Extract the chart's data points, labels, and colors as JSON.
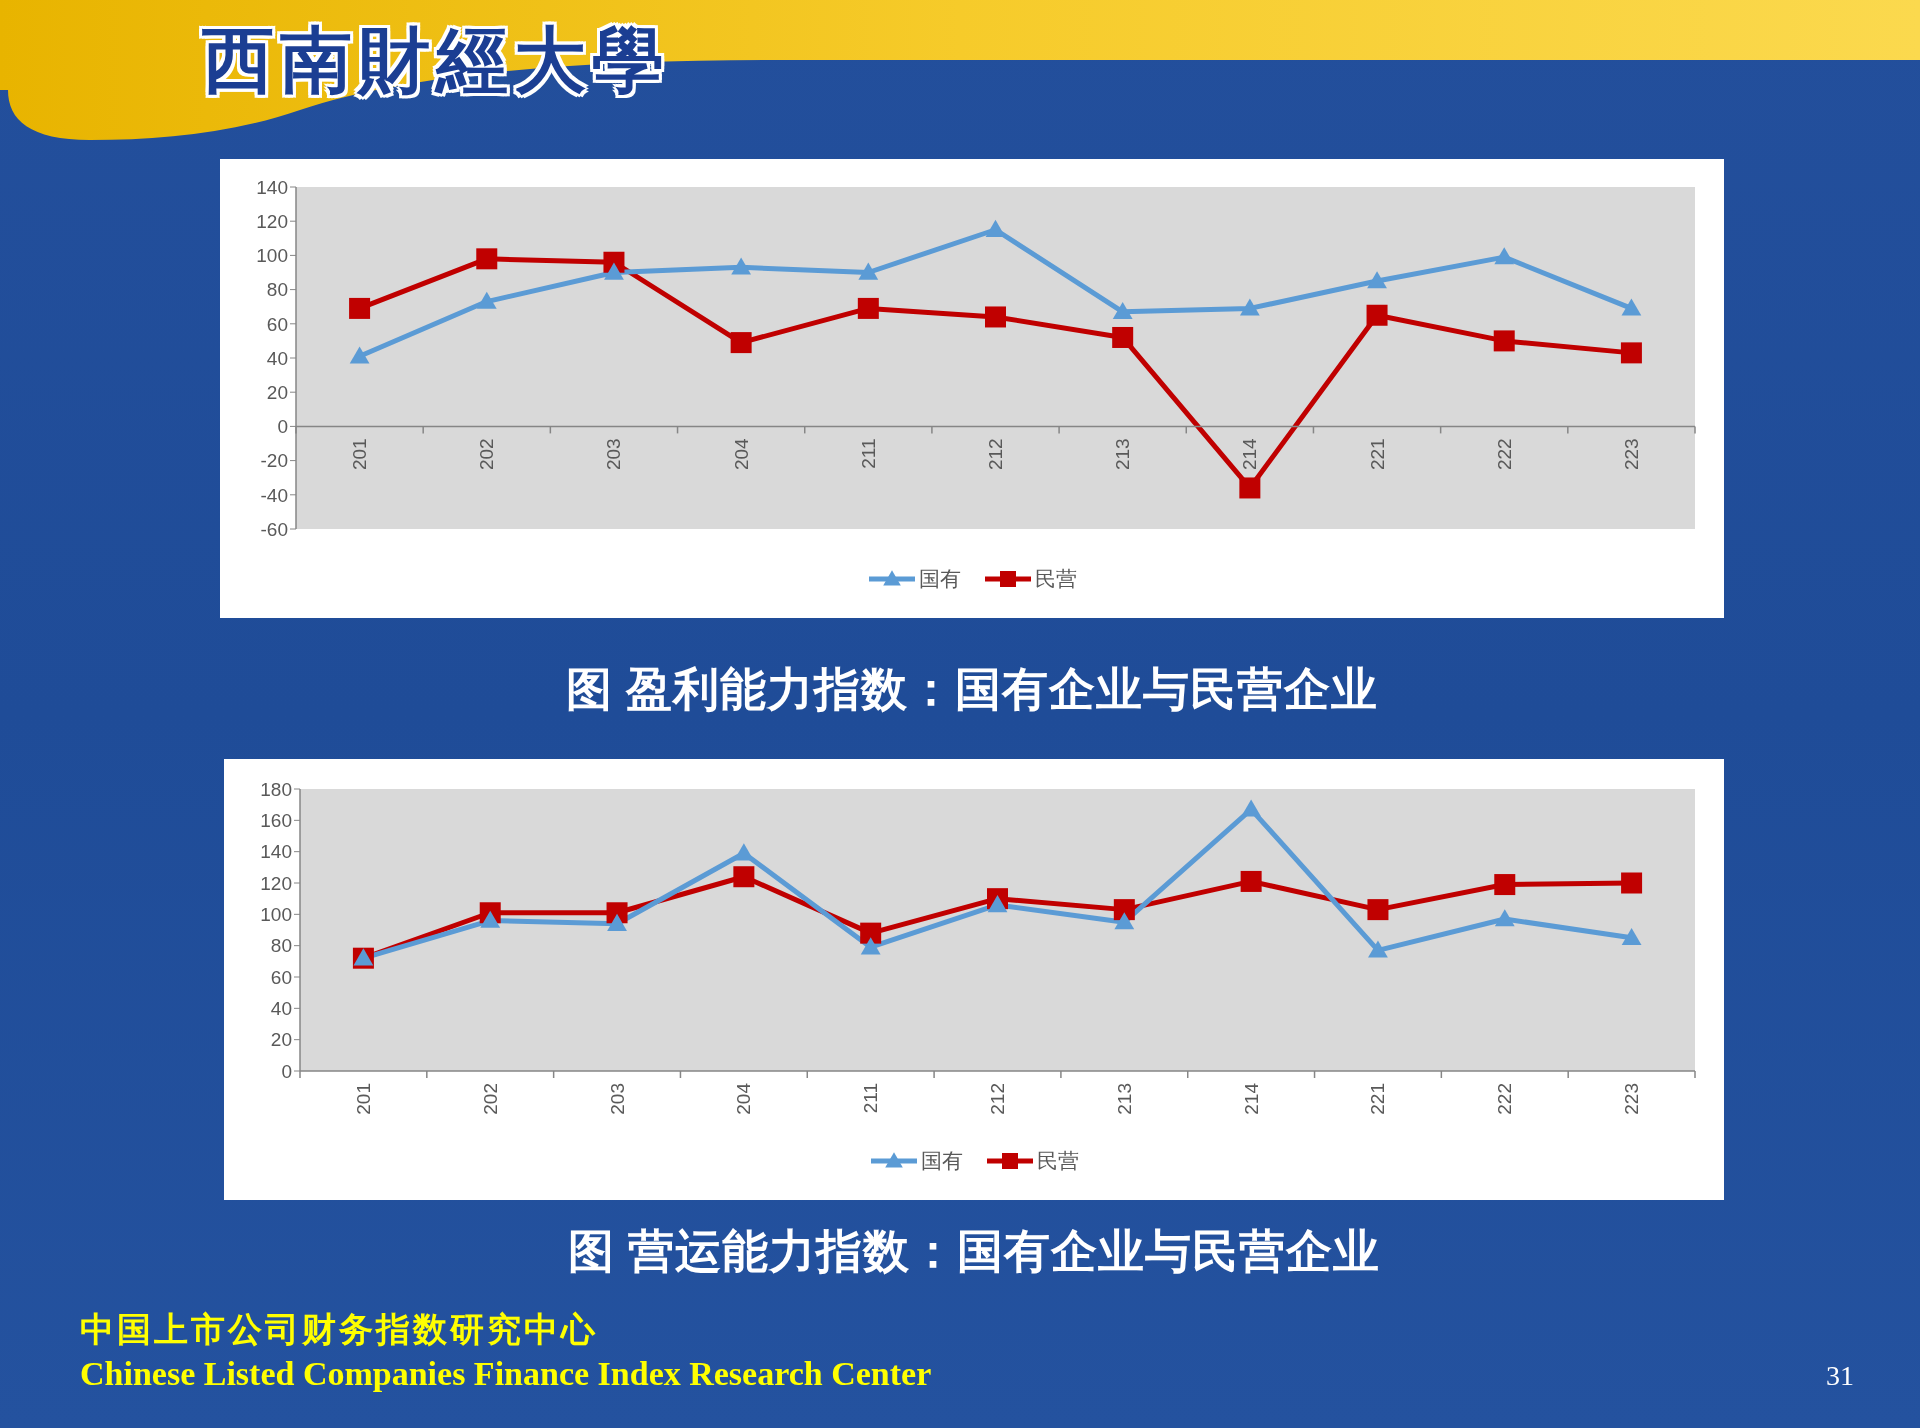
{
  "chart_data": [
    {
      "type": "line",
      "title": "图 盈利能力指数：国有企业与民营企业",
      "annotations": [
        "西南財經大學"
      ],
      "categories": [
        "201",
        "202",
        "203",
        "204",
        "211",
        "212",
        "213",
        "214",
        "221",
        "222",
        "223"
      ],
      "series": [
        {
          "name": "国有",
          "color": "#5b9bd5",
          "marker": "triangle",
          "values": [
            41,
            73,
            90,
            93,
            90,
            115,
            67,
            69,
            85,
            99,
            69
          ]
        },
        {
          "name": "民营",
          "color": "#c00000",
          "marker": "square",
          "values": [
            69,
            98,
            96,
            49,
            69,
            64,
            52,
            -36,
            65,
            50,
            43
          ]
        }
      ],
      "ylim": [
        -60,
        140
      ],
      "yticks": [
        -60,
        -40,
        -20,
        0,
        20,
        40,
        60,
        80,
        100,
        120,
        140
      ],
      "legend": "bottom"
    },
    {
      "type": "line",
      "title": "图 营运能力指数：国有企业与民营企业",
      "annotations": [
        "中国上市公司财务指数研究中心",
        "Chinese Listed Companies Finance Index Research Center",
        "31"
      ],
      "categories": [
        "201",
        "202",
        "203",
        "204",
        "211",
        "212",
        "213",
        "214",
        "221",
        "222",
        "223"
      ],
      "series": [
        {
          "name": "国有",
          "color": "#5b9bd5",
          "marker": "triangle",
          "values": [
            72,
            96,
            94,
            139,
            79,
            106,
            95,
            167,
            77,
            97,
            85
          ]
        },
        {
          "name": "民营",
          "color": "#c00000",
          "marker": "square",
          "values": [
            72,
            101,
            101,
            124,
            88,
            110,
            103,
            121,
            103,
            119,
            120
          ]
        }
      ],
      "ylim": [
        0,
        180
      ],
      "yticks": [
        0,
        20,
        40,
        60,
        80,
        100,
        120,
        140,
        160,
        180
      ],
      "legend": "bottom"
    }
  ]
}
